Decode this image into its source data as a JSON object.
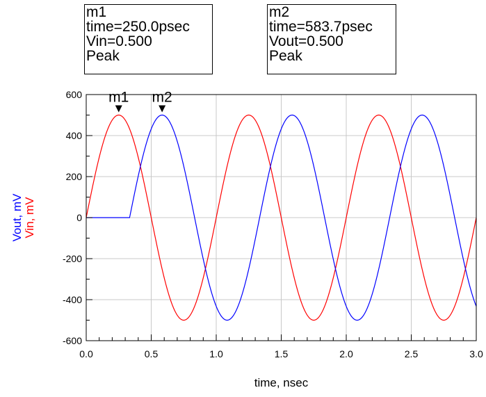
{
  "markers": [
    {
      "name": "m1",
      "lines": [
        "m1",
        "time=250.0psec",
        "Vin=0.500",
        "Peak"
      ],
      "x": 0.25,
      "y": 500,
      "series": "Vin"
    },
    {
      "name": "m2",
      "lines": [
        "m2",
        "time=583.7psec",
        "Vout=0.500",
        "Peak"
      ],
      "x": 0.5837,
      "y": 500,
      "series": "Vout"
    }
  ],
  "chart_data": {
    "type": "line",
    "title": "",
    "xlabel": "time, nsec",
    "ylabel_parts": [
      {
        "text": "Vout, mV",
        "color": "#0000ff"
      },
      {
        "text": "Vin, mV",
        "color": "#ff0000"
      }
    ],
    "xlim": [
      0.0,
      3.0
    ],
    "ylim": [
      -600,
      600
    ],
    "xticks": [
      0.0,
      0.5,
      1.0,
      1.5,
      2.0,
      2.5,
      3.0
    ],
    "xtick_labels": [
      "0.0",
      "0.5",
      "1.0",
      "1.5",
      "2.0",
      "2.5",
      "3.0"
    ],
    "yticks": [
      -600,
      -400,
      -200,
      0,
      200,
      400,
      600
    ],
    "ytick_labels": [
      "-600",
      "-400",
      "-200",
      "0",
      "200",
      "400",
      "600"
    ],
    "grid": true,
    "series": [
      {
        "name": "Vin",
        "color": "#ff0000",
        "function": "sine",
        "amplitude": 500,
        "frequency_ghz": 1.0,
        "delay_ns": 0.0,
        "x_start": 0.0,
        "x_end": 3.0
      },
      {
        "name": "Vout",
        "color": "#0000ff",
        "function": "delayed_sine",
        "amplitude": 500,
        "frequency_ghz": 1.0,
        "delay_ns": 0.3337,
        "x_start": 0.0,
        "x_end": 3.0
      }
    ]
  }
}
